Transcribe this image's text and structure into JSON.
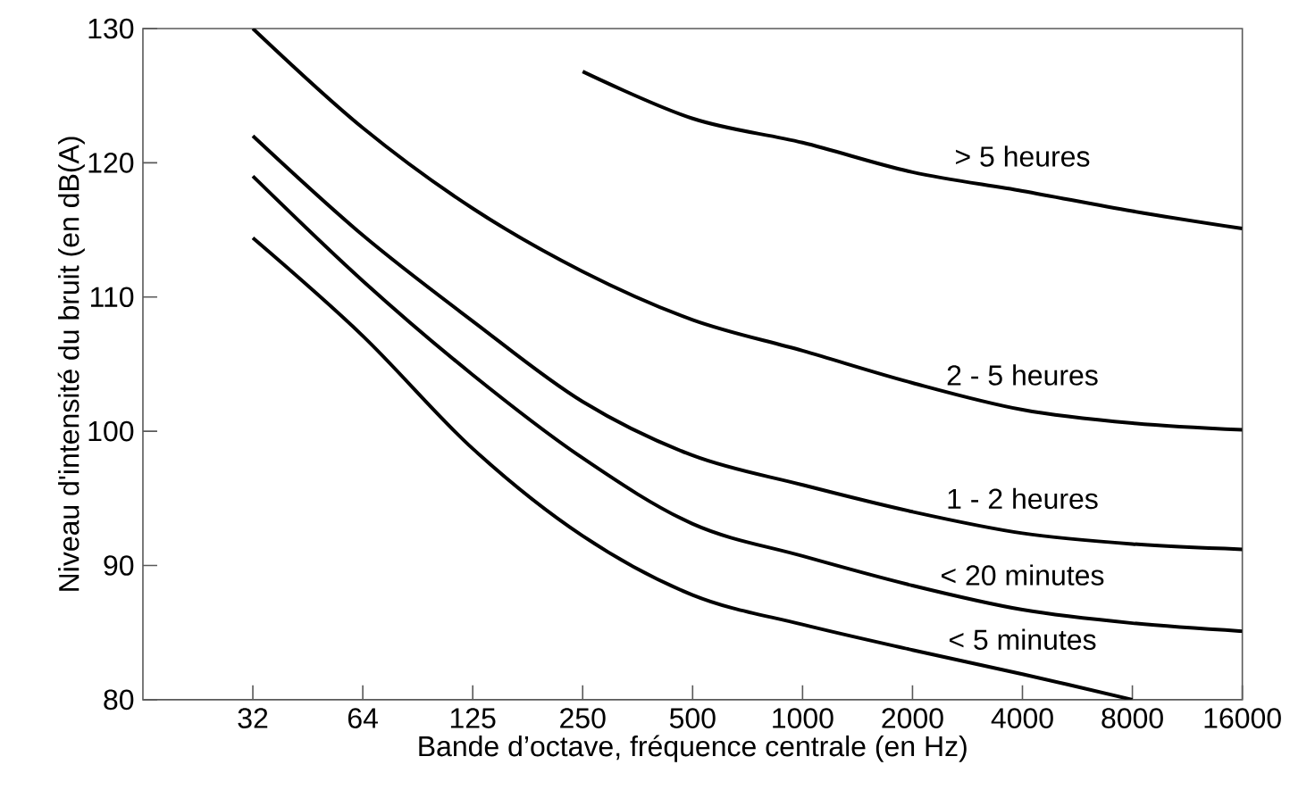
{
  "chart_data": {
    "type": "line",
    "xlabel": "Bande d’octave, fréquence centrale (en Hz)",
    "ylabel": "Niveau d'intensité du bruit (en dB(A)",
    "categories": [
      "32",
      "64",
      "125",
      "250",
      "500",
      "1000",
      "2000",
      "4000",
      "8000",
      "16000"
    ],
    "ylim": [
      80,
      130
    ],
    "yticks": [
      80,
      90,
      100,
      110,
      120,
      130
    ],
    "grid": false,
    "legend": false,
    "marker": "none",
    "line_style": "solid",
    "series": [
      {
        "name": "> 5 heures",
        "color": "#000000",
        "values": [
          null,
          null,
          null,
          126.8,
          123.3,
          121.5,
          119.3,
          117.9,
          116.4,
          115.1
        ]
      },
      {
        "name": "2 - 5 heures",
        "color": "#000000",
        "values": [
          130,
          122.6,
          116.6,
          111.9,
          108.3,
          106,
          103.6,
          101.6,
          100.6,
          100.1
        ]
      },
      {
        "name": "1 - 2 heures",
        "color": "#000000",
        "values": [
          122,
          114.6,
          108.2,
          102.2,
          98.2,
          96,
          94,
          92.4,
          91.6,
          91.2
        ]
      },
      {
        "name": "< 20 minutes",
        "color": "#000000",
        "values": [
          119,
          111.2,
          104.2,
          98,
          93.1,
          90.7,
          88.5,
          86.7,
          85.7,
          85.1
        ]
      },
      {
        "name": "< 5 minutes",
        "color": "#000000",
        "values": [
          114.4,
          107.1,
          98.7,
          92.2,
          87.8,
          85.6,
          83.7,
          81.9,
          80,
          null
        ]
      }
    ]
  }
}
